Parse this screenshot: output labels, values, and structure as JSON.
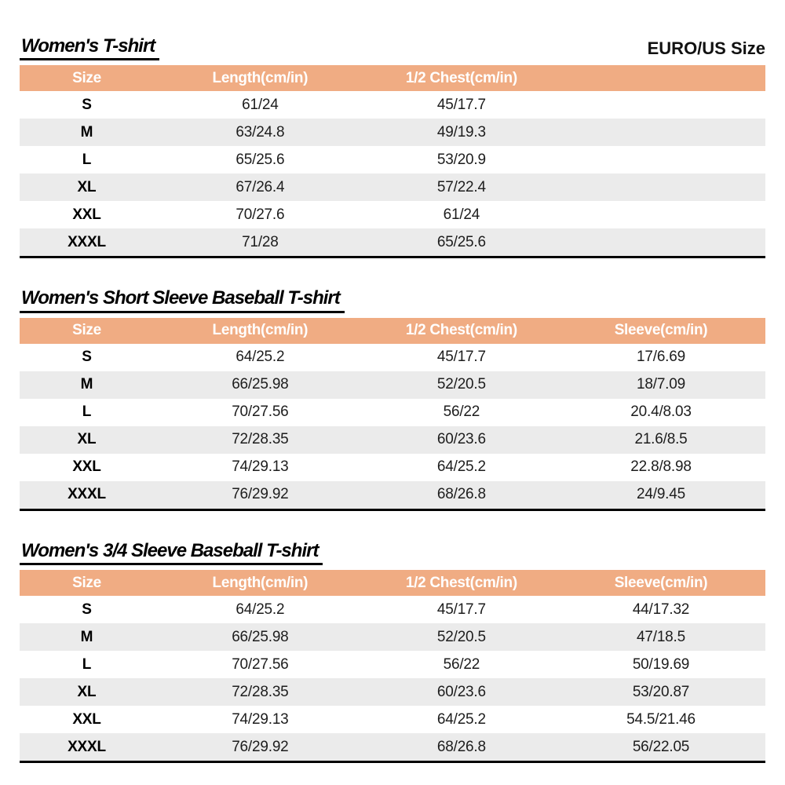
{
  "page": {
    "corner_label": "EURO/US Size"
  },
  "colors": {
    "header_bg": "#F0AC83",
    "header_text": "#FFFFFF",
    "row_alt_bg": "#EBEBEB",
    "border": "#000000"
  },
  "tables": [
    {
      "title": "Women's T-shirt",
      "columns": [
        "Size",
        "Length(cm/in)",
        "1/2 Chest(cm/in)",
        ""
      ],
      "rows": [
        [
          "S",
          "61/24",
          "45/17.7",
          ""
        ],
        [
          "M",
          "63/24.8",
          "49/19.3",
          ""
        ],
        [
          "L",
          "65/25.6",
          "53/20.9",
          ""
        ],
        [
          "XL",
          "67/26.4",
          "57/22.4",
          ""
        ],
        [
          "XXL",
          "70/27.6",
          "61/24",
          ""
        ],
        [
          "XXXL",
          "71/28",
          "65/25.6",
          ""
        ]
      ]
    },
    {
      "title": "Women's Short Sleeve Baseball T-shirt",
      "columns": [
        "Size",
        "Length(cm/in)",
        "1/2 Chest(cm/in)",
        "Sleeve(cm/in)"
      ],
      "rows": [
        [
          "S",
          "64/25.2",
          "45/17.7",
          "17/6.69"
        ],
        [
          "M",
          "66/25.98",
          "52/20.5",
          "18/7.09"
        ],
        [
          "L",
          "70/27.56",
          "56/22",
          "20.4/8.03"
        ],
        [
          "XL",
          "72/28.35",
          "60/23.6",
          "21.6/8.5"
        ],
        [
          "XXL",
          "74/29.13",
          "64/25.2",
          "22.8/8.98"
        ],
        [
          "XXXL",
          "76/29.92",
          "68/26.8",
          "24/9.45"
        ]
      ]
    },
    {
      "title": "Women's 3/4 Sleeve Baseball T-shirt",
      "columns": [
        "Size",
        "Length(cm/in)",
        "1/2 Chest(cm/in)",
        "Sleeve(cm/in)"
      ],
      "rows": [
        [
          "S",
          "64/25.2",
          "45/17.7",
          "44/17.32"
        ],
        [
          "M",
          "66/25.98",
          "52/20.5",
          "47/18.5"
        ],
        [
          "L",
          "70/27.56",
          "56/22",
          "50/19.69"
        ],
        [
          "XL",
          "72/28.35",
          "60/23.6",
          "53/20.87"
        ],
        [
          "XXL",
          "74/29.13",
          "64/25.2",
          "54.5/21.46"
        ],
        [
          "XXXL",
          "76/29.92",
          "68/26.8",
          "56/22.05"
        ]
      ]
    }
  ]
}
